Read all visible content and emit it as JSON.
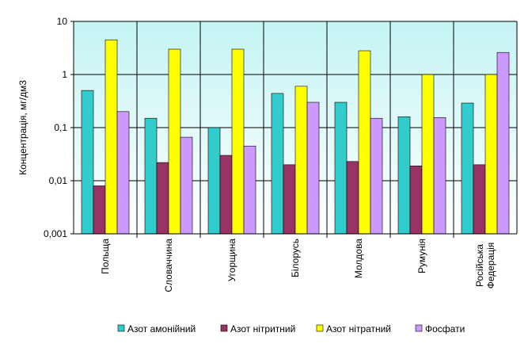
{
  "chart_data": {
    "type": "bar",
    "log_scale": true,
    "grid": true,
    "legend_position": "bottom",
    "y_label": "Концентрація, мг/дм3",
    "categories": [
      "Польща",
      "Словаччина",
      "Угорщина",
      "Білорусь",
      "Молдова",
      "Румунія",
      "Російська Федерація"
    ],
    "series": [
      {
        "name": "Азот амонійний",
        "color": "#33cccc",
        "values": [
          0.5,
          0.15,
          0.1,
          0.44,
          0.3,
          0.16,
          0.29
        ]
      },
      {
        "name": "Азот нітритний",
        "color": "#993366",
        "values": [
          0.008,
          0.022,
          0.03,
          0.02,
          0.023,
          0.019,
          0.02
        ]
      },
      {
        "name": "Азот нітратний",
        "color": "#ffff00",
        "values": [
          4.5,
          3.0,
          3.0,
          0.6,
          2.8,
          1.0,
          1.0
        ]
      },
      {
        "name": "Фосфати",
        "color": "#cc99ff",
        "values": [
          0.2,
          0.066,
          0.045,
          0.3,
          0.15,
          0.155,
          2.6
        ]
      }
    ],
    "ylim": [
      0.001,
      10
    ],
    "yticks": [
      {
        "value": 0.001,
        "label": "0,001"
      },
      {
        "value": 0.01,
        "label": "0,01"
      },
      {
        "value": 0.1,
        "label": "0,1"
      },
      1,
      10
    ]
  }
}
